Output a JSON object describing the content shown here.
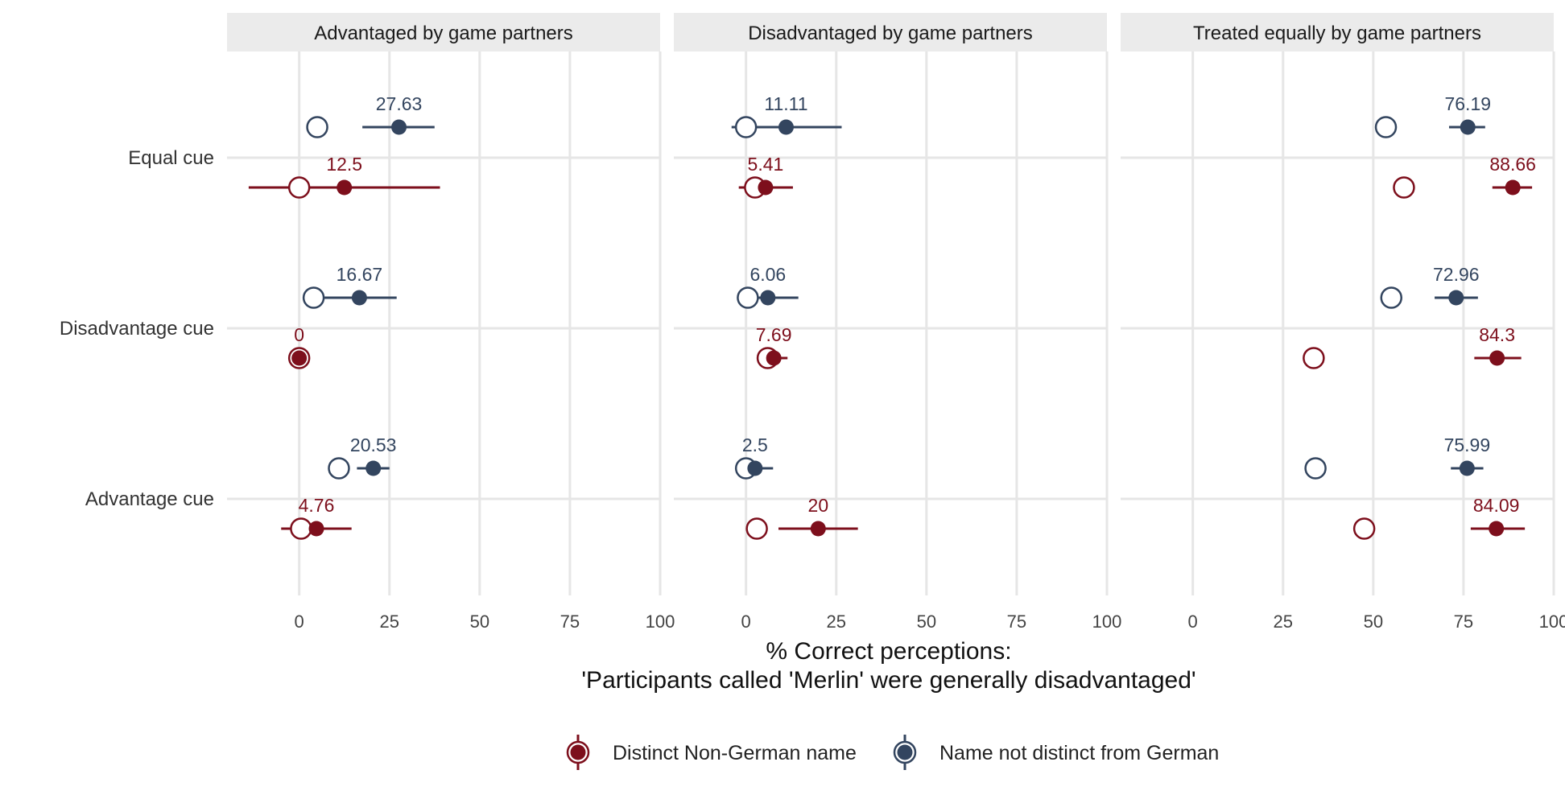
{
  "chart_data": {
    "type": "scatter",
    "x_title_line1": "% Correct perceptions:",
    "x_title_line2": "'Participants called 'Merlin' were generally disadvantaged'",
    "xlim": [
      -20,
      100
    ],
    "x_ticks": [
      0,
      25,
      50,
      75,
      100
    ],
    "x_tick_labels": [
      "0",
      "25",
      "50",
      "75",
      "100"
    ],
    "categories": [
      "Equal cue",
      "Disadvantage cue",
      "Advantage cue"
    ],
    "colors": {
      "distinct": "#7d0f1c",
      "not_distinct": "#33455f"
    },
    "legend": {
      "position": "bottom",
      "items": [
        {
          "key": "distinct",
          "label": "Distinct Non-German name"
        },
        {
          "key": "not_distinct",
          "label": "Name not distinct from German"
        }
      ]
    },
    "panels": [
      {
        "title": "Advantaged by game partners",
        "points": [
          {
            "category": "Equal cue",
            "group": "not_distinct",
            "value": 27.63,
            "label": "27.63",
            "ci": [
              17.5,
              37.5
            ],
            "open": 5
          },
          {
            "category": "Equal cue",
            "group": "distinct",
            "value": 12.5,
            "label": "12.5",
            "ci": [
              -14,
              39
            ],
            "open": 0
          },
          {
            "category": "Disadvantage cue",
            "group": "not_distinct",
            "value": 16.67,
            "label": "16.67",
            "ci": [
              7,
              27
            ],
            "open": 4
          },
          {
            "category": "Disadvantage cue",
            "group": "distinct",
            "value": 0,
            "label": "0",
            "ci": [
              0,
              0
            ],
            "open": 0
          },
          {
            "category": "Advantage cue",
            "group": "not_distinct",
            "value": 20.53,
            "label": "20.53",
            "ci": [
              16,
              25
            ],
            "open": 11
          },
          {
            "category": "Advantage cue",
            "group": "distinct",
            "value": 4.76,
            "label": "4.76",
            "ci": [
              -5,
              14.5
            ],
            "open": 0.5
          }
        ]
      },
      {
        "title": "Disadvantaged by game partners",
        "points": [
          {
            "category": "Equal cue",
            "group": "not_distinct",
            "value": 11.11,
            "label": "11.11",
            "ci": [
              -4,
              26.5
            ],
            "open": 0
          },
          {
            "category": "Equal cue",
            "group": "distinct",
            "value": 5.41,
            "label": "5.41",
            "ci": [
              -2,
              13
            ],
            "open": 2.5
          },
          {
            "category": "Disadvantage cue",
            "group": "not_distinct",
            "value": 6.06,
            "label": "6.06",
            "ci": [
              -1,
              14.5
            ],
            "open": 0.5
          },
          {
            "category": "Disadvantage cue",
            "group": "distinct",
            "value": 7.69,
            "label": "7.69",
            "ci": [
              4,
              11.5
            ],
            "open": 6
          },
          {
            "category": "Advantage cue",
            "group": "not_distinct",
            "value": 2.5,
            "label": "2.5",
            "ci": [
              -2,
              7.5
            ],
            "open": 0
          },
          {
            "category": "Advantage cue",
            "group": "distinct",
            "value": 20,
            "label": "20",
            "ci": [
              9,
              31
            ],
            "open": 3
          }
        ]
      },
      {
        "title": "Treated equally by game partners",
        "points": [
          {
            "category": "Equal cue",
            "group": "not_distinct",
            "value": 76.19,
            "label": "76.19",
            "ci": [
              71,
              81
            ],
            "open": 53.5
          },
          {
            "category": "Equal cue",
            "group": "distinct",
            "value": 88.66,
            "label": "88.66",
            "ci": [
              83,
              94
            ],
            "open": 58.5
          },
          {
            "category": "Disadvantage cue",
            "group": "not_distinct",
            "value": 72.96,
            "label": "72.96",
            "ci": [
              67,
              79
            ],
            "open": 55
          },
          {
            "category": "Disadvantage cue",
            "group": "distinct",
            "value": 84.3,
            "label": "84.3",
            "ci": [
              78,
              91
            ],
            "open": 33.5
          },
          {
            "category": "Advantage cue",
            "group": "not_distinct",
            "value": 75.99,
            "label": "75.99",
            "ci": [
              71.5,
              80.5
            ],
            "open": 34
          },
          {
            "category": "Advantage cue",
            "group": "distinct",
            "value": 84.09,
            "label": "84.09",
            "ci": [
              77,
              92
            ],
            "open": 47.5
          }
        ]
      }
    ]
  }
}
